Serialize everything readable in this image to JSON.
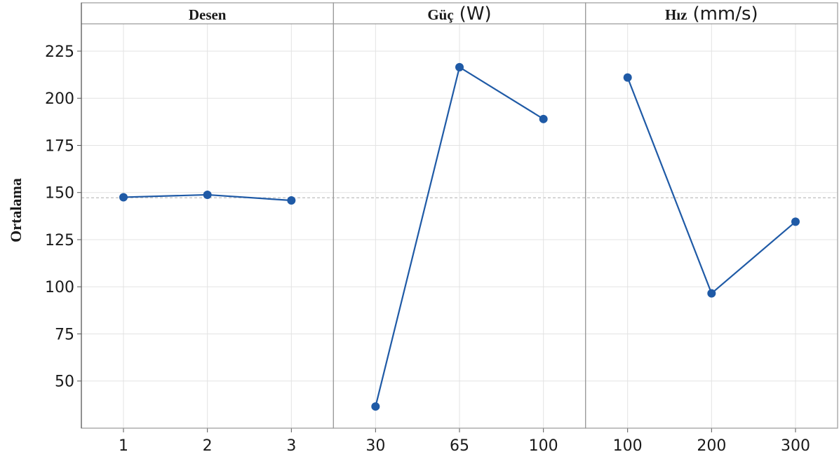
{
  "chart_data": {
    "type": "line",
    "ylabel": "Ortalama",
    "ylim": [
      25,
      238
    ],
    "yticks": [
      50,
      75,
      100,
      125,
      150,
      175,
      200,
      225
    ],
    "reference_mean": 147.2,
    "grid": true,
    "colors": {
      "series": "#1f5aa6",
      "panel_border": "#9a9a9a",
      "grid": "#e3e3e3",
      "mean_line": "#c8c8c8"
    },
    "panels": [
      {
        "title": "Desen",
        "unit": "",
        "categories": [
          "1",
          "2",
          "3"
        ],
        "values": [
          147.5,
          148.8,
          145.8
        ]
      },
      {
        "title": "Güç",
        "unit": "(W)",
        "categories": [
          "30",
          "65",
          "100"
        ],
        "values": [
          36.5,
          216.5,
          189
        ]
      },
      {
        "title": "Hız",
        "unit": "(mm/s)",
        "categories": [
          "100",
          "200",
          "300"
        ],
        "values": [
          211,
          96.5,
          134.5
        ]
      }
    ]
  }
}
